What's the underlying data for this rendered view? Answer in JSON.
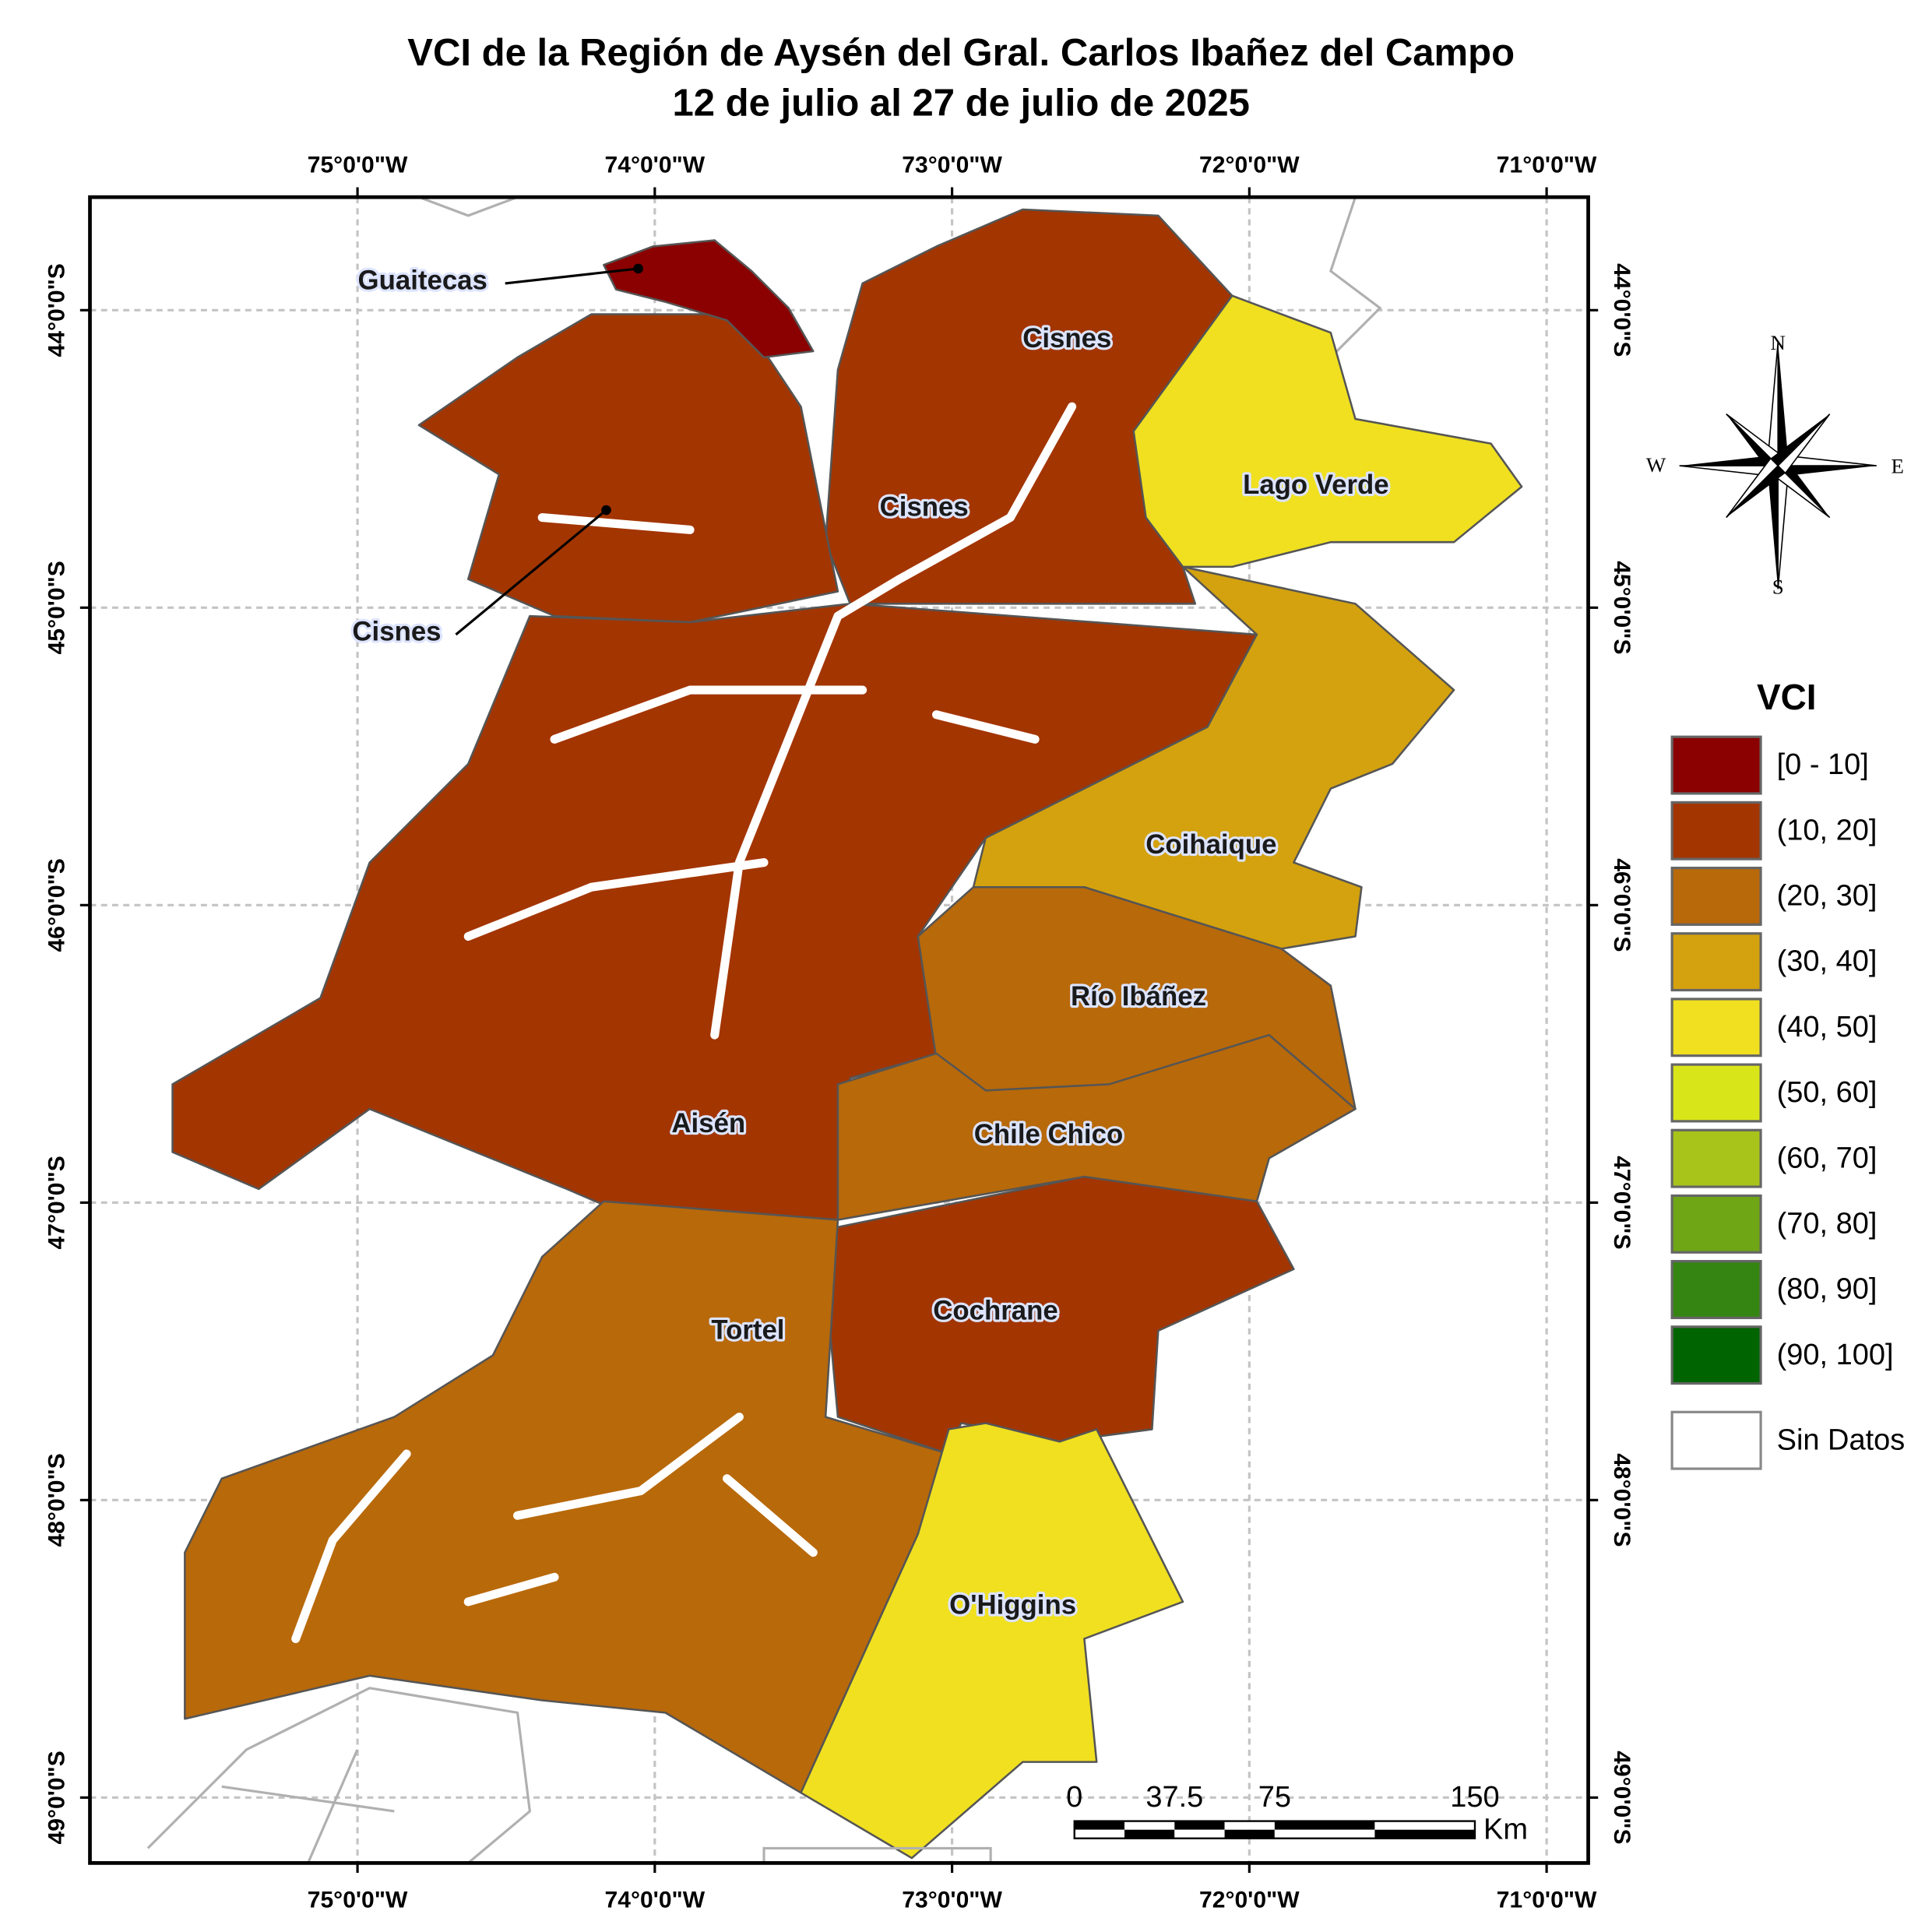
{
  "title": [
    "VCI de la Región de Aysén del Gral. Carlos Ibañez del Campo",
    "12 de julio al 27 de julio de 2025"
  ],
  "map": {
    "lonlim": [
      -75.9,
      -70.86
    ],
    "latlim": [
      -43.62,
      -49.22
    ],
    "lon_ticks": [
      {
        "value": -75,
        "label": "75°0'0\"W"
      },
      {
        "value": -74,
        "label": "74°0'0\"W"
      },
      {
        "value": -73,
        "label": "73°0'0\"W"
      },
      {
        "value": -72,
        "label": "72°0'0\"W"
      },
      {
        "value": -71,
        "label": "71°0'0\"W"
      }
    ],
    "lat_ticks": [
      {
        "value": -44,
        "label": "44°0'0\"S"
      },
      {
        "value": -45,
        "label": "45°0'0\"S"
      },
      {
        "value": -46,
        "label": "46°0'0\"S"
      },
      {
        "value": -47,
        "label": "47°0'0\"S"
      },
      {
        "value": -48,
        "label": "48°0'0\"S"
      },
      {
        "value": -49,
        "label": "49°0'0\"S"
      }
    ]
  },
  "regions": [
    "Guaitecas",
    "Cisnes",
    "Cisnes",
    "Cisnes",
    "Lago Verde",
    "Coihaique",
    "Río Ibáñez",
    "Aisén",
    "Chile Chico",
    "Cochrane",
    "Tortel",
    "O'Higgins"
  ],
  "legend": {
    "title": "VCI",
    "items": [
      {
        "label": "[0 - 10]",
        "color": "#8b0000"
      },
      {
        "label": "(10, 20]",
        "color": "#a33500"
      },
      {
        "label": "(20, 30]",
        "color": "#b8690a"
      },
      {
        "label": "(30, 40]",
        "color": "#d4a20e"
      },
      {
        "label": "(40, 50]",
        "color": "#f0e020"
      },
      {
        "label": "(50, 60]",
        "color": "#d8e619"
      },
      {
        "label": "(60, 70]",
        "color": "#a8c41b"
      },
      {
        "label": "(70, 80]",
        "color": "#6fa615"
      },
      {
        "label": "(80, 90]",
        "color": "#358512"
      },
      {
        "label": "(90, 100]",
        "color": "#006400"
      }
    ],
    "no_data": "Sin Datos"
  },
  "scale_bar": {
    "ticks": [
      0,
      37.5,
      75,
      150
    ],
    "unit": "Km"
  },
  "compass": {
    "n": "N",
    "e": "E",
    "s": "S",
    "w": "W"
  }
}
